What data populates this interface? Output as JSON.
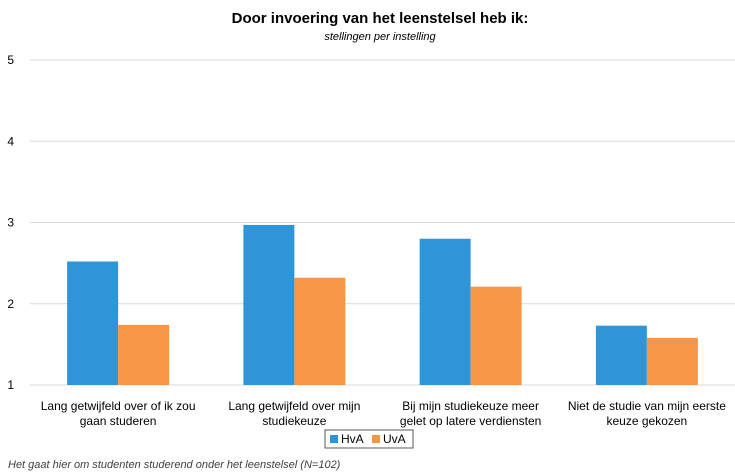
{
  "chart_data": {
    "type": "bar",
    "title": "Door invoering van het leenstelsel heb ik:",
    "subtitle": "stellingen per instelling",
    "categories": [
      [
        "Lang getwijfeld over of ik zou",
        "gaan studeren"
      ],
      [
        "Lang getwijfeld over mijn",
        "studiekeuze"
      ],
      [
        "Bij mijn studiekeuze meer",
        "gelet op latere verdiensten"
      ],
      [
        "Niet de studie van mijn eerste",
        "keuze gekozen"
      ]
    ],
    "series": [
      {
        "name": "HvA",
        "color": "#2e96d8",
        "values": [
          2.52,
          2.97,
          2.8,
          1.73
        ]
      },
      {
        "name": "UvA",
        "color": "#f79646",
        "values": [
          1.74,
          2.32,
          2.21,
          1.58
        ]
      }
    ],
    "ylim": [
      1,
      5
    ],
    "yticks": [
      "1",
      "2",
      "3",
      "4",
      "5"
    ],
    "grid": true,
    "legend_position": "bottom",
    "footnote": "Het gaat hier om studenten studerend onder het leenstelsel (N=102)"
  }
}
